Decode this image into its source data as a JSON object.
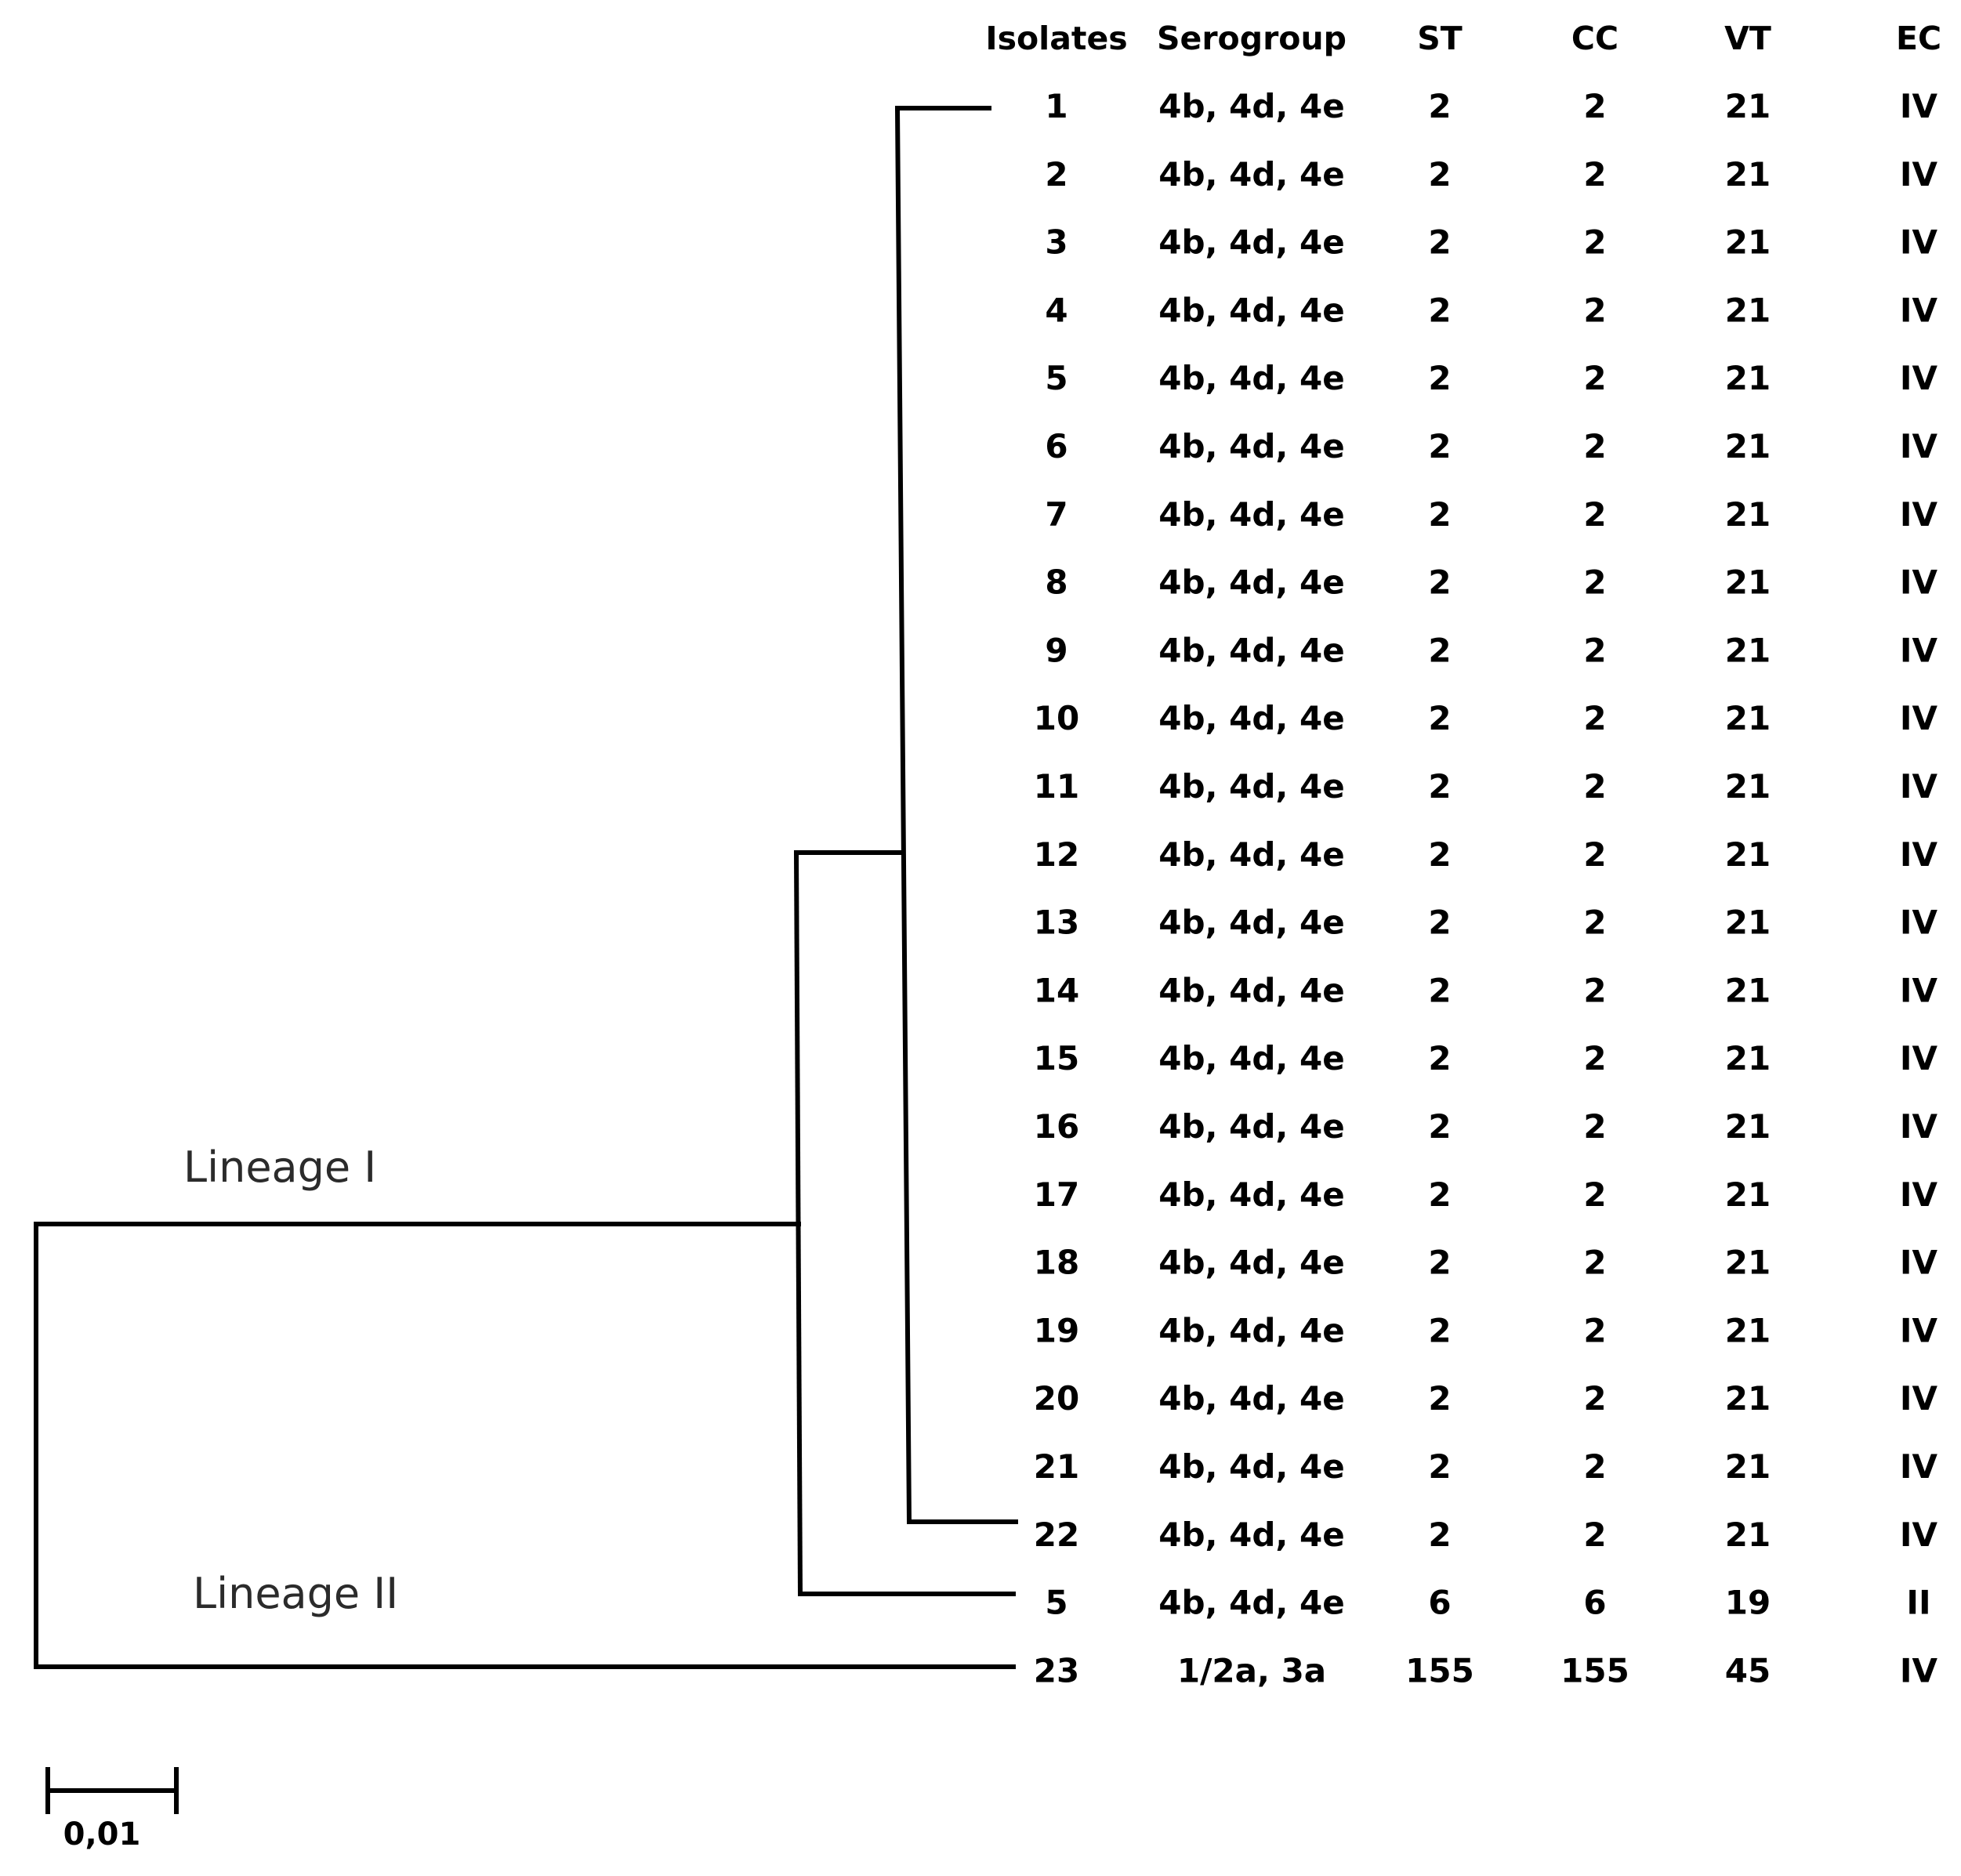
{
  "figure": {
    "type": "phylogenetic-tree-with-table",
    "columns": [
      {
        "key": "isolate",
        "label": "Isolates"
      },
      {
        "key": "serogroup",
        "label": "Serogroup"
      },
      {
        "key": "st",
        "label": "ST"
      },
      {
        "key": "cc",
        "label": "CC"
      },
      {
        "key": "vt",
        "label": "VT"
      },
      {
        "key": "ec",
        "label": "EC"
      }
    ],
    "rows": [
      {
        "isolate": "1",
        "serogroup": "4b, 4d, 4e",
        "st": "2",
        "cc": "2",
        "vt": "21",
        "ec": "IV"
      },
      {
        "isolate": "2",
        "serogroup": "4b, 4d, 4e",
        "st": "2",
        "cc": "2",
        "vt": "21",
        "ec": "IV"
      },
      {
        "isolate": "3",
        "serogroup": "4b, 4d, 4e",
        "st": "2",
        "cc": "2",
        "vt": "21",
        "ec": "IV"
      },
      {
        "isolate": "4",
        "serogroup": "4b, 4d, 4e",
        "st": "2",
        "cc": "2",
        "vt": "21",
        "ec": "IV"
      },
      {
        "isolate": "5",
        "serogroup": "4b, 4d, 4e",
        "st": "2",
        "cc": "2",
        "vt": "21",
        "ec": "IV"
      },
      {
        "isolate": "6",
        "serogroup": "4b, 4d, 4e",
        "st": "2",
        "cc": "2",
        "vt": "21",
        "ec": "IV"
      },
      {
        "isolate": "7",
        "serogroup": "4b, 4d, 4e",
        "st": "2",
        "cc": "2",
        "vt": "21",
        "ec": "IV"
      },
      {
        "isolate": "8",
        "serogroup": "4b, 4d, 4e",
        "st": "2",
        "cc": "2",
        "vt": "21",
        "ec": "IV"
      },
      {
        "isolate": "9",
        "serogroup": "4b, 4d, 4e",
        "st": "2",
        "cc": "2",
        "vt": "21",
        "ec": "IV"
      },
      {
        "isolate": "10",
        "serogroup": "4b, 4d, 4e",
        "st": "2",
        "cc": "2",
        "vt": "21",
        "ec": "IV"
      },
      {
        "isolate": "11",
        "serogroup": "4b, 4d, 4e",
        "st": "2",
        "cc": "2",
        "vt": "21",
        "ec": "IV"
      },
      {
        "isolate": "12",
        "serogroup": "4b, 4d, 4e",
        "st": "2",
        "cc": "2",
        "vt": "21",
        "ec": "IV"
      },
      {
        "isolate": "13",
        "serogroup": "4b, 4d, 4e",
        "st": "2",
        "cc": "2",
        "vt": "21",
        "ec": "IV"
      },
      {
        "isolate": "14",
        "serogroup": "4b, 4d, 4e",
        "st": "2",
        "cc": "2",
        "vt": "21",
        "ec": "IV"
      },
      {
        "isolate": "15",
        "serogroup": "4b, 4d, 4e",
        "st": "2",
        "cc": "2",
        "vt": "21",
        "ec": "IV"
      },
      {
        "isolate": "16",
        "serogroup": "4b, 4d, 4e",
        "st": "2",
        "cc": "2",
        "vt": "21",
        "ec": "IV"
      },
      {
        "isolate": "17",
        "serogroup": "4b, 4d, 4e",
        "st": "2",
        "cc": "2",
        "vt": "21",
        "ec": "IV"
      },
      {
        "isolate": "18",
        "serogroup": "4b, 4d, 4e",
        "st": "2",
        "cc": "2",
        "vt": "21",
        "ec": "IV"
      },
      {
        "isolate": "19",
        "serogroup": "4b, 4d, 4e",
        "st": "2",
        "cc": "2",
        "vt": "21",
        "ec": "IV"
      },
      {
        "isolate": "20",
        "serogroup": "4b, 4d, 4e",
        "st": "2",
        "cc": "2",
        "vt": "21",
        "ec": "IV"
      },
      {
        "isolate": "21",
        "serogroup": "4b, 4d, 4e",
        "st": "2",
        "cc": "2",
        "vt": "21",
        "ec": "IV"
      },
      {
        "isolate": "22",
        "serogroup": "4b, 4d, 4e",
        "st": "2",
        "cc": "2",
        "vt": "21",
        "ec": "IV"
      },
      {
        "isolate": "5",
        "serogroup": "4b, 4d, 4e",
        "st": "6",
        "cc": "6",
        "vt": "19",
        "ec": "II"
      },
      {
        "isolate": "23",
        "serogroup": "1/2a, 3a",
        "st": "155",
        "cc": "155",
        "vt": "45",
        "ec": "IV"
      }
    ],
    "lineage_labels": [
      "Lineage I",
      "Lineage II"
    ],
    "scale_bar": {
      "label": "0,01",
      "value": 0.01
    }
  },
  "colors": {
    "line": "#000000",
    "text": "#000000",
    "lineage_text": "#2b2b2b",
    "background": "#ffffff"
  }
}
